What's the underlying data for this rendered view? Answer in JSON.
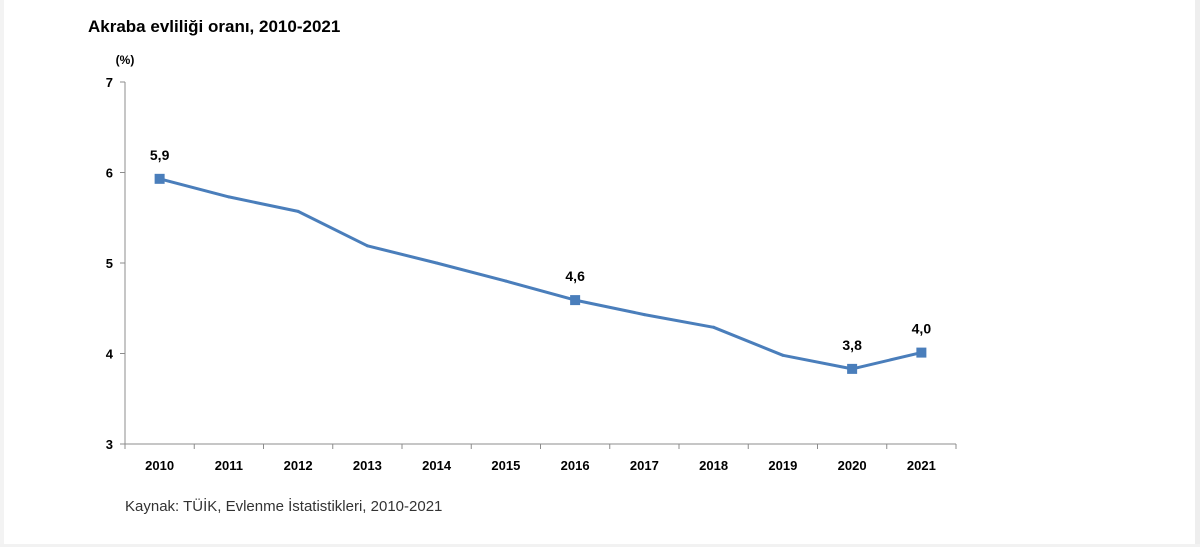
{
  "title": "Akraba evliliği oranı, 2010-2021",
  "source": "Kaynak: TÜİK, Evlenme İstatistikleri, 2010-2021",
  "colors": {
    "series": "#4a7ebb",
    "marker": "#4a7ebb",
    "axis": "#8c8c8c"
  },
  "chart_data": {
    "type": "line",
    "title": "Akraba evliliği oranı, 2010-2021",
    "xlabel": "",
    "ylabel": "(%)",
    "ylim": [
      3,
      7
    ],
    "yticks": [
      "3",
      "4",
      "5",
      "6",
      "7"
    ],
    "grid": false,
    "legend": "none",
    "categories": [
      "2010",
      "2011",
      "2012",
      "2013",
      "2014",
      "2015",
      "2016",
      "2017",
      "2018",
      "2019",
      "2020",
      "2021"
    ],
    "series": [
      {
        "name": "Akraba evliliği oranı",
        "values": [
          5.93,
          5.73,
          5.57,
          5.19,
          5.0,
          4.8,
          4.59,
          4.43,
          4.29,
          3.98,
          3.83,
          4.01
        ]
      }
    ],
    "markers": [
      {
        "index": 0,
        "label": "5,9"
      },
      {
        "index": 6,
        "label": "4,6"
      },
      {
        "index": 10,
        "label": "3,8"
      },
      {
        "index": 11,
        "label": "4,0"
      }
    ]
  }
}
